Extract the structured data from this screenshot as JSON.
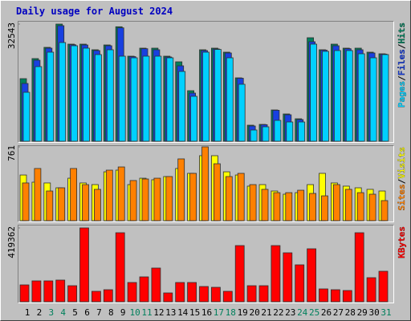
{
  "title": "Daily usage for August 2024",
  "categories": [
    "1",
    "2",
    "3",
    "4",
    "5",
    "6",
    "7",
    "8",
    "9",
    "10",
    "11",
    "12",
    "13",
    "14",
    "15",
    "16",
    "17",
    "18",
    "19",
    "20",
    "21",
    "22",
    "23",
    "24",
    "25",
    "26",
    "27",
    "28",
    "29",
    "30",
    "31"
  ],
  "category_colors": [
    "#000000",
    "#000000",
    "#00805c",
    "#00805c",
    "#000000",
    "#000000",
    "#000000",
    "#000000",
    "#000000",
    "#00805c",
    "#00805c",
    "#000000",
    "#000000",
    "#000000",
    "#000000",
    "#000000",
    "#00805c",
    "#00805c",
    "#000000",
    "#000000",
    "#000000",
    "#000000",
    "#000000",
    "#00805c",
    "#00805c",
    "#000000",
    "#000000",
    "#000000",
    "#000000",
    "#000000",
    "#00805c"
  ],
  "legend_separator": "/",
  "chart_data": [
    {
      "type": "bar",
      "ylim": [
        0,
        32543
      ],
      "yticks": [
        32543
      ],
      "series": [
        {
          "name": "Hits",
          "color": "#00805c",
          "values": [
            17386,
            22959,
            26079,
            32543,
            26971,
            26971,
            25411,
            26748,
            31800,
            23627,
            25856,
            25856,
            23627,
            22067,
            14043,
            25411,
            25856,
            24742,
            17609,
            4458,
            4681,
            8693,
            7579,
            6241,
            28754,
            25411,
            26971,
            25856,
            25856,
            24742,
            24296
          ]
        },
        {
          "name": "Files",
          "color": "#1840e0",
          "values": [
            16049,
            22513,
            25856,
            32100,
            26800,
            26748,
            25188,
            26525,
            31500,
            23500,
            25700,
            25411,
            23405,
            20953,
            13374,
            25188,
            25634,
            24519,
            17500,
            4235,
            4600,
            8600,
            7356,
            6018,
            27640,
            25300,
            26525,
            25700,
            25411,
            24519,
            24200
          ]
        },
        {
          "name": "Pages",
          "color": "#00d0ff",
          "values": [
            13597,
            20730,
            24742,
            27417,
            26525,
            25856,
            24073,
            25411,
            23627,
            23182,
            23627,
            23627,
            23182,
            19392,
            12482,
            24742,
            25500,
            23182,
            15826,
            3121,
            4012,
            5795,
            5350,
            5350,
            26971,
            24965,
            25188,
            25188,
            24296,
            23182,
            24073
          ]
        }
      ]
    },
    {
      "type": "bar",
      "ylim": [
        0,
        761
      ],
      "yticks": [
        761
      ],
      "series": [
        {
          "name": "Visits",
          "color": "#ffff00",
          "values": [
            471,
            397,
            389,
            339,
            438,
            389,
            372,
            504,
            521,
            372,
            438,
            422,
            455,
            538,
            488,
            670,
            670,
            504,
            471,
            356,
            372,
            306,
            273,
            289,
            372,
            488,
            389,
            356,
            339,
            323,
            306
          ]
        },
        {
          "name": "Sites",
          "color": "#ff8000",
          "values": [
            389,
            538,
            306,
            339,
            538,
            372,
            323,
            521,
            554,
            414,
            430,
            438,
            455,
            637,
            488,
            761,
            587,
            455,
            488,
            372,
            323,
            289,
            289,
            314,
            281,
            256,
            372,
            323,
            289,
            273,
            207
          ]
        }
      ]
    },
    {
      "type": "bar",
      "ylim": [
        0,
        419362
      ],
      "yticks": [
        419362
      ],
      "series": [
        {
          "name": "KBytes",
          "color": "#ff0000",
          "values": [
            95718,
            118508,
            118508,
            123066,
            91160,
            419362,
            59254,
            68370,
            391988,
            109392,
            141298,
            191436,
            50138,
            109392,
            109392,
            86602,
            82044,
            59254,
            319060,
            91160,
            91160,
            319060,
            278038,
            209668,
            300828,
            72928,
            68370,
            63812,
            391988,
            136740,
            173204
          ]
        }
      ]
    }
  ]
}
